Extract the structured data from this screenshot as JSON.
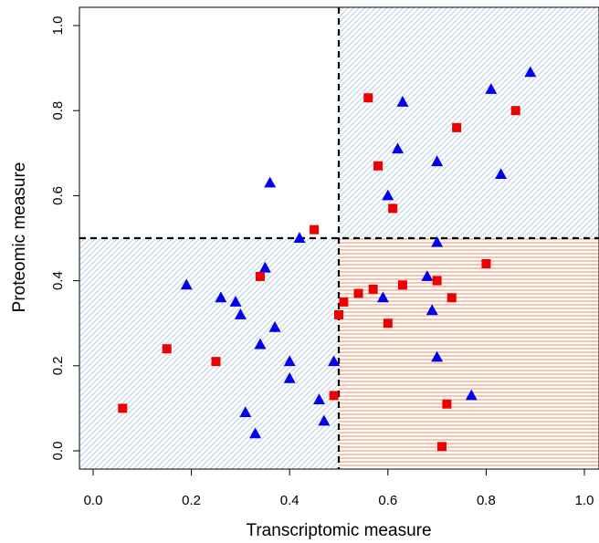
{
  "chart_data": {
    "type": "scatter",
    "title": "",
    "xlabel": "Transcriptomic measure",
    "ylabel": "Proteomic measure",
    "xlim": [
      0.0,
      1.0
    ],
    "ylim": [
      0.0,
      1.0
    ],
    "x_ticks": [
      "0.0",
      "0.2",
      "0.4",
      "0.6",
      "0.8",
      "1.0"
    ],
    "y_ticks": [
      "0.0",
      "0.2",
      "0.4",
      "0.6",
      "0.8",
      "1.0"
    ],
    "thresholds": {
      "x": 0.5,
      "y": 0.5
    },
    "shaded_regions": [
      {
        "quadrant": "upper-right",
        "color": "#b8cde0",
        "hatch": "diagonal"
      },
      {
        "quadrant": "lower-left",
        "color": "#b8cde0",
        "hatch": "diagonal"
      },
      {
        "quadrant": "lower-right",
        "color": "#f08a60",
        "hatch": "horizontal"
      }
    ],
    "grid": false,
    "legend": "none",
    "series": [
      {
        "marker": "triangle",
        "color": "#0000ee",
        "points": [
          [
            0.89,
            0.89
          ],
          [
            0.81,
            0.85
          ],
          [
            0.63,
            0.82
          ],
          [
            0.62,
            0.71
          ],
          [
            0.7,
            0.68
          ],
          [
            0.83,
            0.65
          ],
          [
            0.6,
            0.6
          ],
          [
            0.36,
            0.63
          ],
          [
            0.42,
            0.5
          ],
          [
            0.7,
            0.49
          ],
          [
            0.19,
            0.39
          ],
          [
            0.26,
            0.36
          ],
          [
            0.35,
            0.43
          ],
          [
            0.68,
            0.41
          ],
          [
            0.29,
            0.35
          ],
          [
            0.3,
            0.32
          ],
          [
            0.59,
            0.36
          ],
          [
            0.69,
            0.33
          ],
          [
            0.37,
            0.29
          ],
          [
            0.34,
            0.25
          ],
          [
            0.4,
            0.21
          ],
          [
            0.49,
            0.21
          ],
          [
            0.4,
            0.17
          ],
          [
            0.7,
            0.22
          ],
          [
            0.46,
            0.12
          ],
          [
            0.31,
            0.09
          ],
          [
            0.47,
            0.07
          ],
          [
            0.33,
            0.04
          ],
          [
            0.77,
            0.13
          ]
        ]
      },
      {
        "marker": "square",
        "color": "#ee0000",
        "points": [
          [
            0.56,
            0.83
          ],
          [
            0.86,
            0.8
          ],
          [
            0.74,
            0.76
          ],
          [
            0.58,
            0.67
          ],
          [
            0.61,
            0.57
          ],
          [
            0.45,
            0.52
          ],
          [
            0.34,
            0.41
          ],
          [
            0.8,
            0.44
          ],
          [
            0.7,
            0.4
          ],
          [
            0.63,
            0.39
          ],
          [
            0.57,
            0.38
          ],
          [
            0.54,
            0.37
          ],
          [
            0.73,
            0.36
          ],
          [
            0.51,
            0.35
          ],
          [
            0.5,
            0.32
          ],
          [
            0.6,
            0.3
          ],
          [
            0.15,
            0.24
          ],
          [
            0.25,
            0.21
          ],
          [
            0.06,
            0.1
          ],
          [
            0.49,
            0.13
          ],
          [
            0.72,
            0.11
          ],
          [
            0.71,
            0.01
          ]
        ]
      }
    ]
  }
}
